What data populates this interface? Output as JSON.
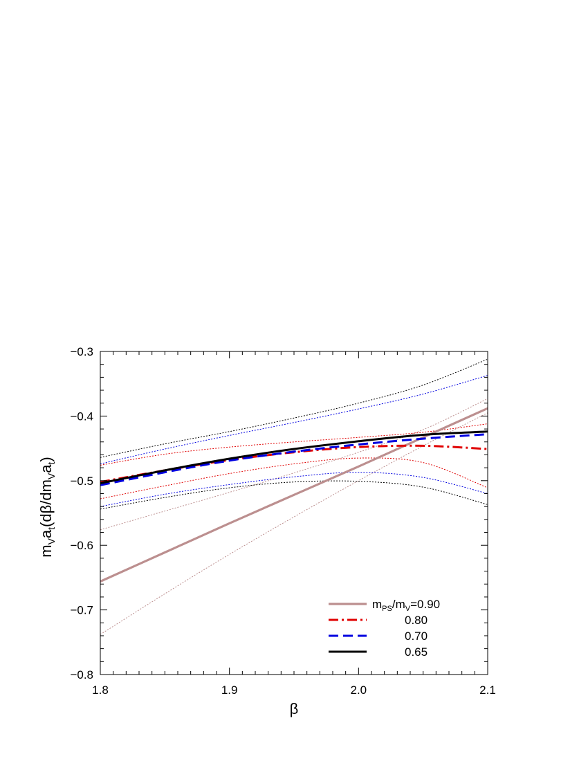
{
  "chart_data": {
    "type": "line",
    "xlim": [
      1.8,
      2.1
    ],
    "ylim": [
      -0.8,
      -0.3
    ],
    "x_ticks": [
      1.8,
      1.9,
      2.0,
      2.1
    ],
    "x_tick_labels": [
      "1.8",
      "1.9",
      "2.0",
      "2.1"
    ],
    "y_ticks": [
      -0.8,
      -0.7,
      -0.6,
      -0.5,
      -0.4,
      -0.3
    ],
    "y_tick_labels": [
      "−0.8",
      "−0.7",
      "−0.6",
      "−0.5",
      "−0.4",
      "−0.3"
    ],
    "xlabel": "β",
    "ylabel": {
      "p1": "m",
      "s1": "V",
      "p2": "a",
      "s2": "t",
      "p3": "(dβ/dm",
      "s3": "V",
      "p4": "a",
      "s4": "t",
      "p5": ")"
    },
    "grid": false,
    "legend_position": "bottom-right",
    "legend_first": {
      "p1": "m",
      "s1": "PS",
      "p2": "/m",
      "s2": "V",
      "p3": "=0.90"
    },
    "series": [
      {
        "name": "0.90",
        "color": "#bc8f8f",
        "style": "solid",
        "x": [
          1.8,
          1.85,
          1.9,
          1.95,
          2.0,
          2.05,
          2.1
        ],
        "y": [
          -0.656,
          -0.611,
          -0.566,
          -0.522,
          -0.478,
          -0.433,
          -0.388
        ],
        "upper": [
          -0.576,
          -0.547,
          -0.518,
          -0.488,
          -0.456,
          -0.421,
          -0.373
        ],
        "lower": [
          -0.738,
          -0.675,
          -0.614,
          -0.556,
          -0.5,
          -0.446,
          -0.395
        ]
      },
      {
        "name": "0.80",
        "color": "#e00000",
        "style": "dashdot",
        "x": [
          1.8,
          1.85,
          1.9,
          1.95,
          2.0,
          2.05,
          2.1
        ],
        "y": [
          -0.502,
          -0.484,
          -0.468,
          -0.456,
          -0.448,
          -0.446,
          -0.451
        ],
        "upper": [
          -0.476,
          -0.459,
          -0.448,
          -0.44,
          -0.433,
          -0.425,
          -0.412
        ],
        "lower": [
          -0.528,
          -0.508,
          -0.489,
          -0.474,
          -0.465,
          -0.472,
          -0.511
        ]
      },
      {
        "name": "0.70",
        "color": "#0000e0",
        "style": "dashed",
        "x": [
          1.8,
          1.85,
          1.9,
          1.95,
          2.0,
          2.05,
          2.1
        ],
        "y": [
          -0.507,
          -0.487,
          -0.469,
          -0.455,
          -0.444,
          -0.435,
          -0.428
        ],
        "upper": [
          -0.474,
          -0.451,
          -0.43,
          -0.41,
          -0.389,
          -0.366,
          -0.337
        ],
        "lower": [
          -0.54,
          -0.521,
          -0.506,
          -0.494,
          -0.487,
          -0.495,
          -0.52
        ]
      },
      {
        "name": "0.65",
        "color": "#000000",
        "style": "solid",
        "x": [
          1.8,
          1.85,
          1.9,
          1.95,
          2.0,
          2.05,
          2.1
        ],
        "y": [
          -0.504,
          -0.484,
          -0.466,
          -0.451,
          -0.439,
          -0.429,
          -0.424
        ],
        "upper": [
          -0.464,
          -0.443,
          -0.424,
          -0.403,
          -0.38,
          -0.352,
          -0.312
        ],
        "lower": [
          -0.544,
          -0.526,
          -0.511,
          -0.502,
          -0.501,
          -0.51,
          -0.537
        ]
      }
    ]
  }
}
